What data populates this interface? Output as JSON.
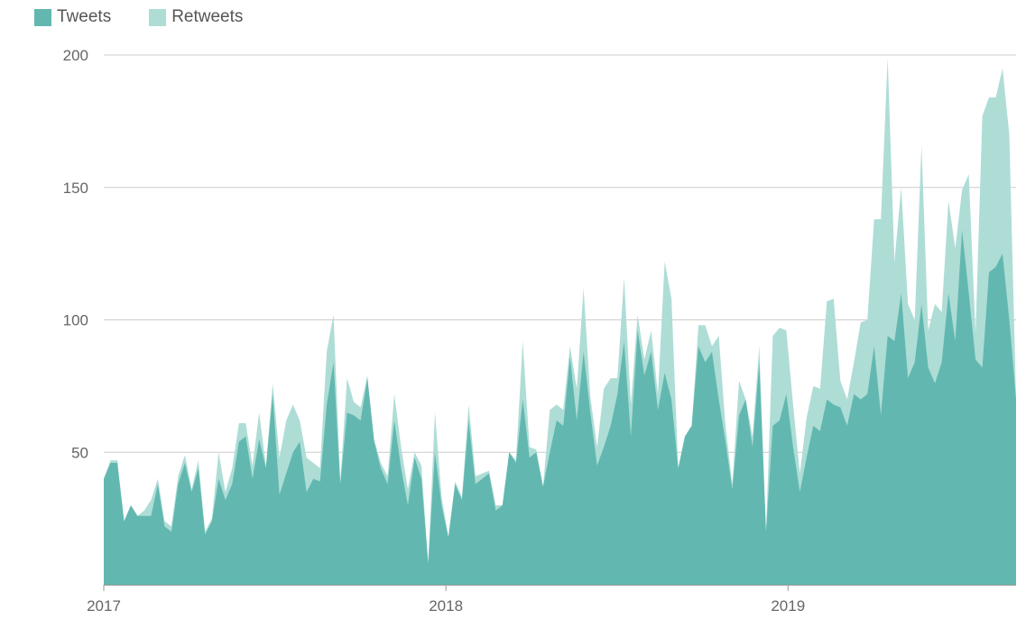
{
  "colors": {
    "tweets": "#62b8b0",
    "retweets": "#aeddd6",
    "grid": "#cccccc",
    "axis": "#999999"
  },
  "legend": [
    {
      "name": "Tweets",
      "color": "#62b8b0"
    },
    {
      "name": "Retweets",
      "color": "#aeddd6"
    }
  ],
  "chart_data": {
    "type": "area",
    "stacked": true,
    "x_start": "2017-01",
    "x_end": "2019-09",
    "ylim": [
      0,
      200
    ],
    "yticks": [
      50,
      100,
      150,
      200
    ],
    "xticks": [
      "2017",
      "2018",
      "2019"
    ],
    "grid": true,
    "legend_position": "top-left",
    "series": [
      {
        "name": "Tweets",
        "values": [
          40,
          46,
          46,
          24,
          30,
          26,
          26,
          26,
          38,
          22,
          20,
          38,
          46,
          35,
          44,
          19,
          24,
          40,
          32,
          38,
          54,
          56,
          40,
          55,
          44,
          72,
          34,
          42,
          50,
          54,
          35,
          40,
          39,
          68,
          84,
          38,
          65,
          64,
          62,
          78,
          54,
          44,
          38,
          62,
          44,
          30,
          48,
          40,
          8,
          50,
          30,
          18,
          38,
          32,
          62,
          38,
          40,
          42,
          28,
          30,
          50,
          46,
          70,
          48,
          50,
          37,
          50,
          62,
          60,
          86,
          62,
          88,
          65,
          45,
          52,
          60,
          72,
          92,
          56,
          96,
          79,
          88,
          66,
          80,
          70,
          44,
          56,
          60,
          90,
          84,
          88,
          70,
          54,
          36,
          64,
          70,
          52,
          84,
          20,
          60,
          62,
          72,
          52,
          35,
          48,
          60,
          58,
          70,
          68,
          67,
          60,
          72,
          70,
          72,
          90,
          64,
          94,
          92,
          110,
          78,
          84,
          106,
          82,
          76,
          84,
          110,
          92,
          134,
          110,
          85,
          82,
          118,
          120,
          125,
          100,
          70
        ]
      },
      {
        "name": "Retweets",
        "values": [
          0,
          1,
          1,
          0,
          0,
          0,
          2,
          6,
          2,
          2,
          2,
          3,
          3,
          1,
          3,
          1,
          1,
          10,
          3,
          6,
          7,
          5,
          5,
          10,
          1,
          4,
          14,
          20,
          18,
          8,
          13,
          6,
          5,
          20,
          18,
          1,
          13,
          5,
          5,
          1,
          1,
          2,
          3,
          10,
          8,
          6,
          2,
          5,
          0,
          15,
          3,
          0,
          1,
          1,
          6,
          3,
          2,
          1,
          2,
          0,
          0,
          1,
          22,
          4,
          1,
          0,
          16,
          6,
          6,
          4,
          12,
          24,
          6,
          7,
          22,
          18,
          6,
          24,
          12,
          6,
          6,
          8,
          6,
          42,
          38,
          0,
          0,
          0,
          8,
          14,
          2,
          24,
          6,
          2,
          13,
          0,
          4,
          6,
          0,
          34,
          35,
          24,
          16,
          7,
          15,
          15,
          16,
          37,
          40,
          10,
          10,
          12,
          29,
          28,
          48,
          74,
          105,
          30,
          40,
          28,
          16,
          60,
          14,
          30,
          19,
          35,
          35,
          15,
          45,
          10,
          95,
          66,
          64,
          70,
          70,
          0
        ]
      }
    ]
  }
}
